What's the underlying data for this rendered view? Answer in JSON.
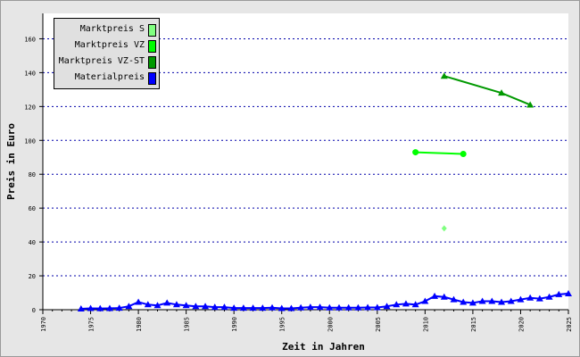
{
  "chart_data": {
    "type": "line",
    "xlabel": "Zeit in Jahren",
    "ylabel": "Preis in Euro",
    "xlim": [
      1970,
      2025
    ],
    "ylim": [
      0,
      175
    ],
    "x_ticks": [
      1970,
      1975,
      1980,
      1985,
      1990,
      1995,
      2000,
      2005,
      2010,
      2015,
      2020,
      2025
    ],
    "y_ticks": [
      0,
      20,
      40,
      60,
      80,
      100,
      120,
      140,
      160
    ],
    "grid": "horizontal-dotted",
    "legend_position": "top-left",
    "series": [
      {
        "name": "Marktpreis S",
        "color": "#80ff80",
        "marker": "diamond",
        "points": [
          [
            2012,
            48
          ]
        ]
      },
      {
        "name": "Marktpreis VZ",
        "color": "#00ff00",
        "marker": "circle",
        "points": [
          [
            2009,
            93
          ],
          [
            2014,
            92
          ]
        ]
      },
      {
        "name": "Marktpreis VZ-ST",
        "color": "#009900",
        "marker": "triangle",
        "points": [
          [
            2012,
            138
          ],
          [
            2018,
            128
          ],
          [
            2021,
            121
          ]
        ]
      },
      {
        "name": "Materialpreis",
        "color": "#0000ff",
        "marker": "triangle",
        "points": [
          [
            1974,
            0.5
          ],
          [
            1975,
            0.8
          ],
          [
            1976,
            0.7
          ],
          [
            1977,
            0.8
          ],
          [
            1978,
            1.0
          ],
          [
            1979,
            2.0
          ],
          [
            1980,
            4.5
          ],
          [
            1981,
            3.0
          ],
          [
            1982,
            2.5
          ],
          [
            1983,
            4.0
          ],
          [
            1984,
            3.0
          ],
          [
            1985,
            2.5
          ],
          [
            1986,
            2.0
          ],
          [
            1987,
            2.0
          ],
          [
            1988,
            1.5
          ],
          [
            1989,
            1.5
          ],
          [
            1990,
            1.0
          ],
          [
            1991,
            1.0
          ],
          [
            1992,
            1.0
          ],
          [
            1993,
            1.0
          ],
          [
            1994,
            1.2
          ],
          [
            1995,
            0.8
          ],
          [
            1996,
            0.8
          ],
          [
            1997,
            1.2
          ],
          [
            1998,
            1.5
          ],
          [
            1999,
            1.5
          ],
          [
            2000,
            1.2
          ],
          [
            2001,
            1.2
          ],
          [
            2002,
            1.2
          ],
          [
            2003,
            1.2
          ],
          [
            2004,
            1.3
          ],
          [
            2005,
            1.3
          ],
          [
            2006,
            2.0
          ],
          [
            2007,
            3.0
          ],
          [
            2008,
            3.5
          ],
          [
            2009,
            3.0
          ],
          [
            2010,
            5.0
          ],
          [
            2011,
            8.0
          ],
          [
            2012,
            7.5
          ],
          [
            2013,
            6.0
          ],
          [
            2014,
            4.5
          ],
          [
            2015,
            4.0
          ],
          [
            2016,
            5.0
          ],
          [
            2017,
            5.0
          ],
          [
            2018,
            4.5
          ],
          [
            2019,
            5.0
          ],
          [
            2020,
            6.0
          ],
          [
            2021,
            7.0
          ],
          [
            2022,
            6.5
          ],
          [
            2023,
            7.5
          ],
          [
            2024,
            9.0
          ],
          [
            2025,
            9.5
          ]
        ]
      }
    ]
  }
}
